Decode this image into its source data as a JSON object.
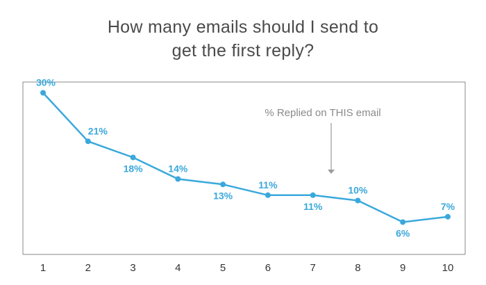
{
  "title_line1": "How many emails should I send to",
  "title_line2": "get the first reply?",
  "chart_data": {
    "type": "line",
    "title": "How many emails should I send to get the first reply?",
    "x": [
      1,
      2,
      3,
      4,
      5,
      6,
      7,
      8,
      9,
      10
    ],
    "values": [
      30,
      21,
      18,
      14,
      13,
      11,
      11,
      10,
      6,
      7
    ],
    "data_labels": [
      "30%",
      "21%",
      "18%",
      "14%",
      "13%",
      "11%",
      "11%",
      "10%",
      "6%",
      "7%"
    ],
    "x_tick_labels": [
      "1",
      "2",
      "3",
      "4",
      "5",
      "6",
      "7",
      "8",
      "9",
      "10"
    ],
    "xlabel": "",
    "ylabel": "",
    "ylim": [
      0,
      32
    ],
    "grid": false,
    "annotation": "% Replied on THIS email",
    "colors": {
      "line": "#3aa8dc",
      "label": "#3aa8dc",
      "axis": "#8a8a8a",
      "tick_text": "#333333",
      "annotation": "#8a8a8a"
    }
  }
}
